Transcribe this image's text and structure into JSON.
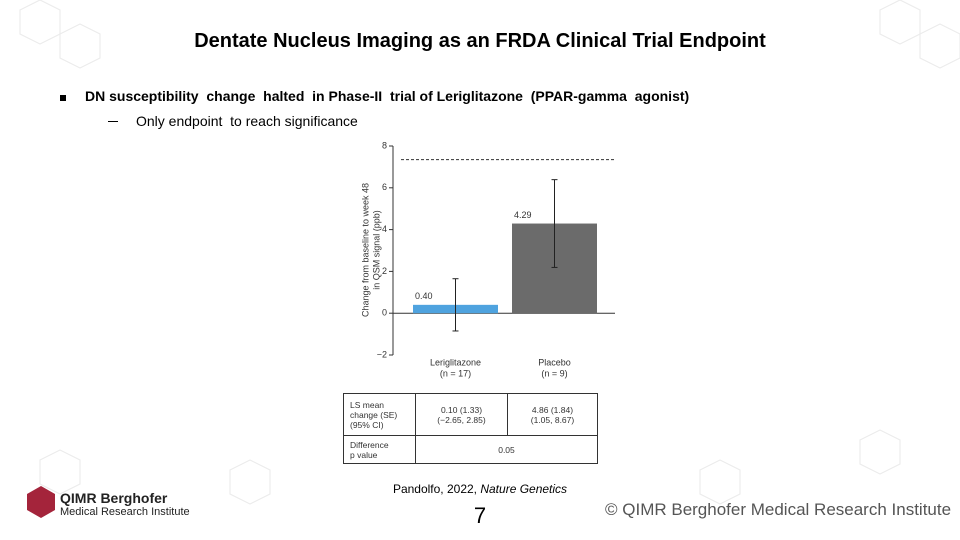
{
  "slide_title": "Dentate Nucleus Imaging as an FRDA Clinical Trial Endpoint",
  "bullet": "DN susceptibility  change  halted  in Phase-II  trial of Leriglitazone  (PPAR-gamma  agonist)",
  "sub_bullet": "Only endpoint  to reach significance",
  "chart_data": {
    "type": "bar",
    "y_label": "Change from baseline to week 48\nin QSM signal (ppb)",
    "categories": [
      "Leriglitazone",
      "Placebo"
    ],
    "category_notes": [
      "(n = 17)",
      "(n = 9)"
    ],
    "values": [
      0.4,
      4.29
    ],
    "value_labels": [
      "0.40",
      "4.29"
    ],
    "errors": [
      1.25,
      2.1
    ],
    "colors": [
      "#4fa3df",
      "#6b6b6b"
    ],
    "reference_line": 7.35,
    "ylim": [
      -2,
      8
    ],
    "yticks": [
      {
        "value": -2,
        "label": "−2"
      },
      0,
      2,
      4,
      6,
      8
    ]
  },
  "table": {
    "rows": [
      [
        "LS mean\nchange (SE)\n(95% CI)",
        "0.10 (1.33)\n(−2.65, 2.85)",
        "4.86 (1.84)\n(1.05, 8.67)"
      ],
      [
        "Difference\np value",
        "0.05"
      ]
    ]
  },
  "citation": {
    "text": "Pandolfo, 2022, ",
    "journal": "Nature Genetics"
  },
  "page_number": "7",
  "copyright": "© QIMR Berghofer Medical Research Institute",
  "logo": {
    "name": "QIMR Berghofer",
    "subtitle": "Medical Research Institute"
  }
}
